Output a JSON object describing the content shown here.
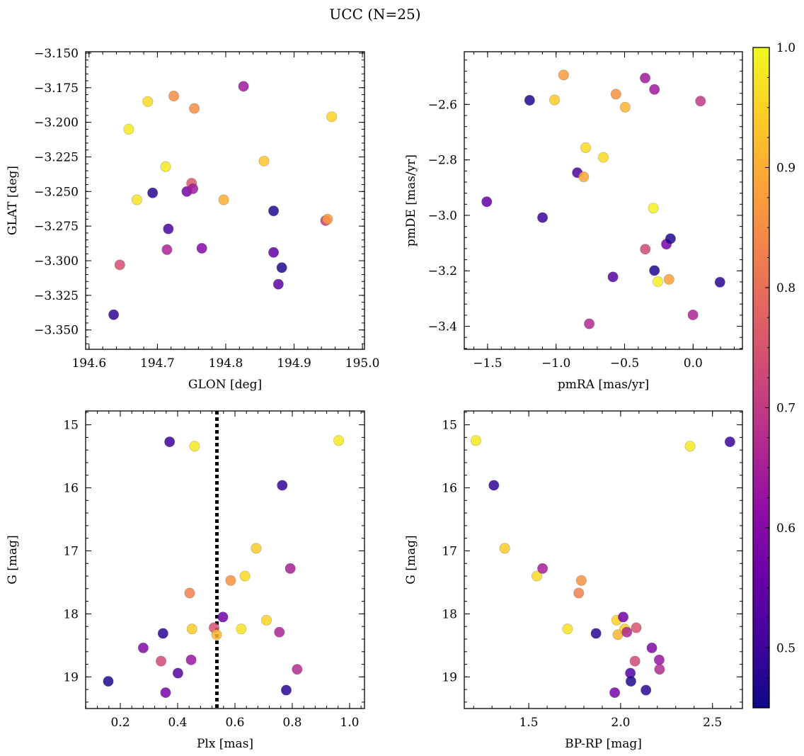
{
  "figure": {
    "title": "UCC (N=25)"
  },
  "colorbar": {
    "cmap": "plasma",
    "range": [
      0.45,
      1.0
    ],
    "ticks": [
      0.5,
      0.6,
      0.7,
      0.8,
      0.9,
      1.0
    ],
    "tick_labels": [
      "0.5",
      "0.6",
      "0.7",
      "0.8",
      "0.9",
      "1.0"
    ]
  },
  "chart_data": [
    {
      "type": "scatter",
      "xlabel": "GLON [deg]",
      "ylabel": "GLAT [deg]",
      "xlim": [
        194.595,
        195.003
      ],
      "ylim": [
        -3.364,
        -3.149
      ],
      "y_inverted": false,
      "xticks": [
        194.6,
        194.7,
        194.8,
        194.9,
        195.0
      ],
      "xtick_labels": [
        "194.6",
        "194.7",
        "194.8",
        "194.9",
        "195.0"
      ],
      "yticks": [
        -3.15,
        -3.175,
        -3.2,
        -3.225,
        -3.25,
        -3.275,
        -3.3,
        -3.325,
        -3.35
      ],
      "ytick_labels": [
        "−3.150",
        "−3.175",
        "−3.200",
        "−3.225",
        "−3.250",
        "−3.275",
        "−3.300",
        "−3.325",
        "−3.350"
      ],
      "points": [
        {
          "x": 194.636,
          "y": -3.339,
          "c": 0.49
        },
        {
          "x": 194.645,
          "y": -3.303,
          "c": 0.74
        },
        {
          "x": 194.658,
          "y": -3.205,
          "c": 0.98
        },
        {
          "x": 194.67,
          "y": -3.256,
          "c": 0.97
        },
        {
          "x": 194.686,
          "y": -3.185,
          "c": 0.96
        },
        {
          "x": 194.693,
          "y": -3.251,
          "c": 0.48
        },
        {
          "x": 194.712,
          "y": -3.232,
          "c": 0.98
        },
        {
          "x": 194.714,
          "y": -3.292,
          "c": 0.66
        },
        {
          "x": 194.716,
          "y": -3.277,
          "c": 0.52
        },
        {
          "x": 194.724,
          "y": -3.181,
          "c": 0.85
        },
        {
          "x": 194.743,
          "y": -3.25,
          "c": 0.58
        },
        {
          "x": 194.75,
          "y": -3.244,
          "c": 0.76
        },
        {
          "x": 194.752,
          "y": -3.248,
          "c": 0.64
        },
        {
          "x": 194.754,
          "y": -3.19,
          "c": 0.85
        },
        {
          "x": 194.765,
          "y": -3.291,
          "c": 0.6
        },
        {
          "x": 194.797,
          "y": -3.256,
          "c": 0.9
        },
        {
          "x": 194.826,
          "y": -3.174,
          "c": 0.64
        },
        {
          "x": 194.856,
          "y": -3.228,
          "c": 0.93
        },
        {
          "x": 194.87,
          "y": -3.264,
          "c": 0.47
        },
        {
          "x": 194.87,
          "y": -3.294,
          "c": 0.55
        },
        {
          "x": 194.877,
          "y": -3.317,
          "c": 0.54
        },
        {
          "x": 194.882,
          "y": -3.305,
          "c": 0.47
        },
        {
          "x": 194.946,
          "y": -3.271,
          "c": 0.71
        },
        {
          "x": 194.949,
          "y": -3.27,
          "c": 0.87
        },
        {
          "x": 194.955,
          "y": -3.196,
          "c": 0.95
        }
      ]
    },
    {
      "type": "scatter",
      "xlabel": "pmRA [mas/yr]",
      "ylabel": "pmDE [mas/yr]",
      "xlim": [
        -1.67,
        0.36
      ],
      "ylim": [
        -3.483,
        -2.41
      ],
      "y_inverted": false,
      "xticks": [
        -1.5,
        -1.0,
        -0.5,
        0.0
      ],
      "xtick_labels": [
        "−1.5",
        "−1.0",
        "−0.5",
        "0.0"
      ],
      "yticks": [
        -2.6,
        -2.8,
        -3.0,
        -3.2,
        -3.4
      ],
      "ytick_labels": [
        "−2.6",
        "−2.8",
        "−3.0",
        "−3.2",
        "−3.4"
      ],
      "points": [
        {
          "x": -1.506,
          "y": -2.951,
          "c": 0.55
        },
        {
          "x": -1.193,
          "y": -2.585,
          "c": 0.47
        },
        {
          "x": -1.099,
          "y": -3.008,
          "c": 0.5
        },
        {
          "x": -1.011,
          "y": -2.584,
          "c": 0.94
        },
        {
          "x": -0.945,
          "y": -2.494,
          "c": 0.87
        },
        {
          "x": -0.845,
          "y": -2.846,
          "c": 0.52
        },
        {
          "x": -0.798,
          "y": -2.861,
          "c": 0.89
        },
        {
          "x": -0.784,
          "y": -2.756,
          "c": 0.96
        },
        {
          "x": -0.758,
          "y": -3.391,
          "c": 0.67
        },
        {
          "x": -0.655,
          "y": -2.791,
          "c": 0.96
        },
        {
          "x": -0.585,
          "y": -3.222,
          "c": 0.53
        },
        {
          "x": -0.563,
          "y": -2.563,
          "c": 0.86
        },
        {
          "x": -0.496,
          "y": -2.61,
          "c": 0.91
        },
        {
          "x": -0.349,
          "y": -3.122,
          "c": 0.73
        },
        {
          "x": -0.35,
          "y": -2.505,
          "c": 0.64
        },
        {
          "x": -0.29,
          "y": -2.974,
          "c": 0.99
        },
        {
          "x": -0.282,
          "y": -3.199,
          "c": 0.47
        },
        {
          "x": -0.282,
          "y": -2.546,
          "c": 0.64
        },
        {
          "x": -0.257,
          "y": -3.239,
          "c": 0.99
        },
        {
          "x": -0.195,
          "y": -3.104,
          "c": 0.58
        },
        {
          "x": -0.176,
          "y": -3.231,
          "c": 0.88
        },
        {
          "x": -0.165,
          "y": -3.084,
          "c": 0.47
        },
        {
          "x": -0.001,
          "y": -3.359,
          "c": 0.66
        },
        {
          "x": 0.054,
          "y": -2.588,
          "c": 0.7
        },
        {
          "x": 0.196,
          "y": -3.241,
          "c": 0.48
        }
      ]
    },
    {
      "type": "scatter",
      "xlabel": "Plx [mas]",
      "ylabel": "G [mag]",
      "xlim": [
        0.079,
        1.052
      ],
      "ylim": [
        19.502,
        14.78
      ],
      "y_inverted": true,
      "vline": {
        "x": 0.537,
        "style": "dotted"
      },
      "xticks": [
        0.2,
        0.4,
        0.6,
        0.8,
        1.0
      ],
      "xtick_labels": [
        "0.2",
        "0.4",
        "0.6",
        "0.8",
        "1.0"
      ],
      "yticks": [
        15,
        16,
        17,
        18,
        19
      ],
      "ytick_labels": [
        "15",
        "16",
        "17",
        "18",
        "19"
      ],
      "points": [
        {
          "x": 0.158,
          "y": 19.07,
          "c": 0.47
        },
        {
          "x": 0.28,
          "y": 18.54,
          "c": 0.59
        },
        {
          "x": 0.342,
          "y": 18.75,
          "c": 0.73
        },
        {
          "x": 0.349,
          "y": 18.31,
          "c": 0.48
        },
        {
          "x": 0.358,
          "y": 19.25,
          "c": 0.58
        },
        {
          "x": 0.372,
          "y": 15.27,
          "c": 0.5
        },
        {
          "x": 0.401,
          "y": 18.94,
          "c": 0.53
        },
        {
          "x": 0.442,
          "y": 17.67,
          "c": 0.83
        },
        {
          "x": 0.447,
          "y": 18.73,
          "c": 0.63
        },
        {
          "x": 0.45,
          "y": 18.24,
          "c": 0.94
        },
        {
          "x": 0.459,
          "y": 15.34,
          "c": 0.98
        },
        {
          "x": 0.527,
          "y": 18.22,
          "c": 0.75
        },
        {
          "x": 0.536,
          "y": 18.33,
          "c": 0.91
        },
        {
          "x": 0.558,
          "y": 18.05,
          "c": 0.57
        },
        {
          "x": 0.585,
          "y": 17.47,
          "c": 0.86
        },
        {
          "x": 0.622,
          "y": 18.24,
          "c": 0.97
        },
        {
          "x": 0.635,
          "y": 17.4,
          "c": 0.96
        },
        {
          "x": 0.674,
          "y": 16.96,
          "c": 0.94
        },
        {
          "x": 0.71,
          "y": 18.1,
          "c": 0.95
        },
        {
          "x": 0.755,
          "y": 18.29,
          "c": 0.66
        },
        {
          "x": 0.765,
          "y": 15.96,
          "c": 0.49
        },
        {
          "x": 0.779,
          "y": 19.21,
          "c": 0.48
        },
        {
          "x": 0.793,
          "y": 17.28,
          "c": 0.65
        },
        {
          "x": 0.817,
          "y": 18.88,
          "c": 0.67
        },
        {
          "x": 0.962,
          "y": 15.25,
          "c": 0.98
        }
      ]
    },
    {
      "type": "scatter",
      "xlabel": "BP-RP [mag]",
      "ylabel": "G [mag]",
      "xlim": [
        1.149,
        2.663
      ],
      "ylim": [
        19.502,
        14.78
      ],
      "y_inverted": true,
      "xticks": [
        1.5,
        2.0,
        2.5
      ],
      "xtick_labels": [
        "1.5",
        "2.0",
        "2.5"
      ],
      "yticks": [
        15,
        16,
        17,
        18,
        19
      ],
      "ytick_labels": [
        "15",
        "16",
        "17",
        "18",
        "19"
      ],
      "points": [
        {
          "x": 1.212,
          "y": 15.25,
          "c": 0.98
        },
        {
          "x": 1.31,
          "y": 15.96,
          "c": 0.49
        },
        {
          "x": 1.369,
          "y": 16.96,
          "c": 0.94
        },
        {
          "x": 1.544,
          "y": 17.4,
          "c": 0.96
        },
        {
          "x": 1.575,
          "y": 17.28,
          "c": 0.65
        },
        {
          "x": 1.711,
          "y": 18.24,
          "c": 0.97
        },
        {
          "x": 1.772,
          "y": 17.67,
          "c": 0.83
        },
        {
          "x": 1.786,
          "y": 17.47,
          "c": 0.86
        },
        {
          "x": 1.866,
          "y": 18.31,
          "c": 0.48
        },
        {
          "x": 1.968,
          "y": 19.25,
          "c": 0.58
        },
        {
          "x": 1.978,
          "y": 18.1,
          "c": 0.95
        },
        {
          "x": 1.985,
          "y": 18.33,
          "c": 0.91
        },
        {
          "x": 2.014,
          "y": 18.05,
          "c": 0.57
        },
        {
          "x": 2.022,
          "y": 18.24,
          "c": 0.94
        },
        {
          "x": 2.034,
          "y": 18.29,
          "c": 0.66
        },
        {
          "x": 2.053,
          "y": 18.94,
          "c": 0.53
        },
        {
          "x": 2.056,
          "y": 19.07,
          "c": 0.47
        },
        {
          "x": 2.078,
          "y": 18.75,
          "c": 0.73
        },
        {
          "x": 2.085,
          "y": 18.22,
          "c": 0.75
        },
        {
          "x": 2.138,
          "y": 19.21,
          "c": 0.48
        },
        {
          "x": 2.17,
          "y": 18.54,
          "c": 0.59
        },
        {
          "x": 2.21,
          "y": 18.73,
          "c": 0.63
        },
        {
          "x": 2.212,
          "y": 18.88,
          "c": 0.67
        },
        {
          "x": 2.378,
          "y": 15.34,
          "c": 0.98
        },
        {
          "x": 2.595,
          "y": 15.27,
          "c": 0.5
        }
      ]
    }
  ]
}
